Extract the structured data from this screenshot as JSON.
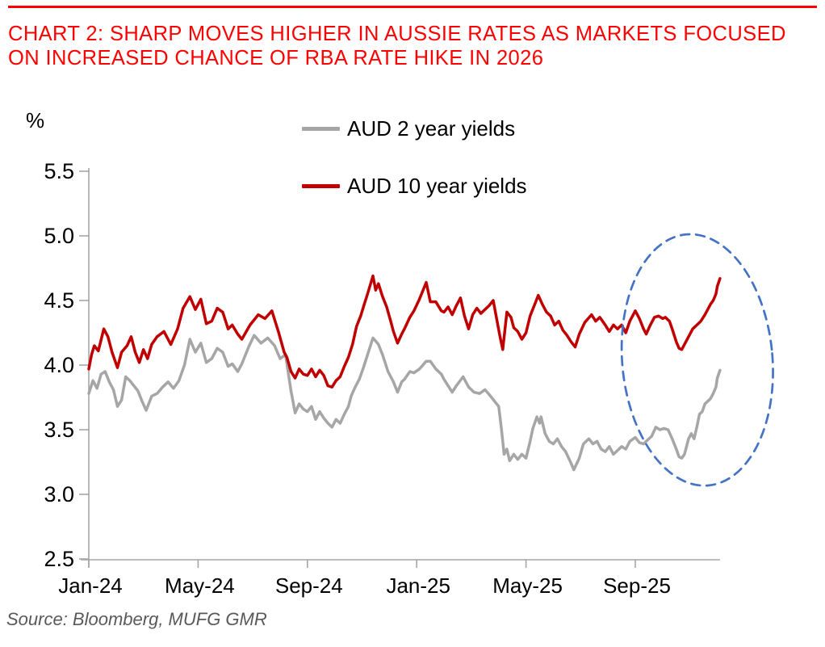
{
  "colors": {
    "title_red": "#FF0000",
    "rule_red": "#FF0000",
    "series_gray": "#A6A6A6",
    "series_red": "#C00000",
    "ellipse_blue": "#4472C4",
    "axis_gray": "#A6A6A6",
    "tick_text": "#000000",
    "source_gray": "#595959"
  },
  "header": {
    "title": "CHART 2: SHARP MOVES HIGHER IN AUSSIE RATES AS MARKETS FOCUSED ON INCREASED CHANCE OF RBA RATE HIKE IN 2026"
  },
  "footer": {
    "source": "Source: Bloomberg, MUFG GMR"
  },
  "chart_data": {
    "type": "line",
    "title": "",
    "ylabel": "%",
    "xlabel": "",
    "grid": false,
    "legend_position": "top-center",
    "ylim": [
      2.5,
      5.5
    ],
    "xlim_months": [
      0,
      23.1
    ],
    "x_unit": "months since Jan-2024",
    "y_ticks": [
      {
        "v": 5.5,
        "label": "5.5"
      },
      {
        "v": 5.0,
        "label": "5.0"
      },
      {
        "v": 4.5,
        "label": "4.5"
      },
      {
        "v": 4.0,
        "label": "4.0"
      },
      {
        "v": 3.5,
        "label": "3.5"
      },
      {
        "v": 3.0,
        "label": "3.0"
      },
      {
        "v": 2.5,
        "label": "2.5"
      }
    ],
    "x_ticks": [
      {
        "t": 0,
        "label": "Jan-24"
      },
      {
        "t": 4,
        "label": "May-24"
      },
      {
        "t": 8,
        "label": "Sep-24"
      },
      {
        "t": 12,
        "label": "Jan-25"
      },
      {
        "t": 16,
        "label": "May-25"
      },
      {
        "t": 20,
        "label": "Sep-25"
      }
    ],
    "series": [
      {
        "name": "AUD 2 year yields",
        "color": "#A6A6A6",
        "points": [
          [
            0,
            3.78
          ],
          [
            0.15,
            3.88
          ],
          [
            0.3,
            3.82
          ],
          [
            0.45,
            3.93
          ],
          [
            0.6,
            3.95
          ],
          [
            0.75,
            3.87
          ],
          [
            0.9,
            3.81
          ],
          [
            1.05,
            3.68
          ],
          [
            1.2,
            3.73
          ],
          [
            1.35,
            3.91
          ],
          [
            1.5,
            3.88
          ],
          [
            1.65,
            3.84
          ],
          [
            1.8,
            3.8
          ],
          [
            1.95,
            3.72
          ],
          [
            2.1,
            3.65
          ],
          [
            2.3,
            3.76
          ],
          [
            2.5,
            3.78
          ],
          [
            2.7,
            3.83
          ],
          [
            2.9,
            3.87
          ],
          [
            3.1,
            3.82
          ],
          [
            3.3,
            3.88
          ],
          [
            3.5,
            4.0
          ],
          [
            3.7,
            4.2
          ],
          [
            3.9,
            4.1
          ],
          [
            4.1,
            4.17
          ],
          [
            4.3,
            4.02
          ],
          [
            4.5,
            4.05
          ],
          [
            4.7,
            4.13
          ],
          [
            4.9,
            4.1
          ],
          [
            5.1,
            3.99
          ],
          [
            5.25,
            4.01
          ],
          [
            5.45,
            3.95
          ],
          [
            5.6,
            4.01
          ],
          [
            5.85,
            4.14
          ],
          [
            6.05,
            4.23
          ],
          [
            6.3,
            4.17
          ],
          [
            6.55,
            4.21
          ],
          [
            6.8,
            4.15
          ],
          [
            7.0,
            4.05
          ],
          [
            7.2,
            4.08
          ],
          [
            7.4,
            3.8
          ],
          [
            7.55,
            3.63
          ],
          [
            7.7,
            3.7
          ],
          [
            7.85,
            3.66
          ],
          [
            8.0,
            3.64
          ],
          [
            8.15,
            3.68
          ],
          [
            8.3,
            3.58
          ],
          [
            8.45,
            3.64
          ],
          [
            8.6,
            3.59
          ],
          [
            8.75,
            3.55
          ],
          [
            8.9,
            3.52
          ],
          [
            9.05,
            3.58
          ],
          [
            9.2,
            3.55
          ],
          [
            9.35,
            3.62
          ],
          [
            9.5,
            3.68
          ],
          [
            9.6,
            3.76
          ],
          [
            9.75,
            3.83
          ],
          [
            9.9,
            3.89
          ],
          [
            10.05,
            3.98
          ],
          [
            10.2,
            4.08
          ],
          [
            10.4,
            4.21
          ],
          [
            10.6,
            4.16
          ],
          [
            10.75,
            4.08
          ],
          [
            10.95,
            3.95
          ],
          [
            11.15,
            3.87
          ],
          [
            11.3,
            3.79
          ],
          [
            11.45,
            3.87
          ],
          [
            11.55,
            3.89
          ],
          [
            11.75,
            3.95
          ],
          [
            11.9,
            3.94
          ],
          [
            12.1,
            3.97
          ],
          [
            12.35,
            4.03
          ],
          [
            12.5,
            4.03
          ],
          [
            12.7,
            3.97
          ],
          [
            12.9,
            3.93
          ],
          [
            13.0,
            3.89
          ],
          [
            13.15,
            3.84
          ],
          [
            13.3,
            3.79
          ],
          [
            13.45,
            3.84
          ],
          [
            13.7,
            3.91
          ],
          [
            13.9,
            3.83
          ],
          [
            14.1,
            3.79
          ],
          [
            14.3,
            3.78
          ],
          [
            14.5,
            3.81
          ],
          [
            14.7,
            3.76
          ],
          [
            14.85,
            3.72
          ],
          [
            15.0,
            3.68
          ],
          [
            15.1,
            3.51
          ],
          [
            15.2,
            3.31
          ],
          [
            15.3,
            3.35
          ],
          [
            15.4,
            3.26
          ],
          [
            15.55,
            3.31
          ],
          [
            15.7,
            3.27
          ],
          [
            15.85,
            3.31
          ],
          [
            16.0,
            3.28
          ],
          [
            16.15,
            3.41
          ],
          [
            16.25,
            3.51
          ],
          [
            16.4,
            3.6
          ],
          [
            16.5,
            3.55
          ],
          [
            16.55,
            3.6
          ],
          [
            16.7,
            3.47
          ],
          [
            16.85,
            3.41
          ],
          [
            17.0,
            3.39
          ],
          [
            17.15,
            3.43
          ],
          [
            17.3,
            3.37
          ],
          [
            17.45,
            3.33
          ],
          [
            17.65,
            3.24
          ],
          [
            17.75,
            3.19
          ],
          [
            17.95,
            3.28
          ],
          [
            18.1,
            3.39
          ],
          [
            18.3,
            3.43
          ],
          [
            18.45,
            3.39
          ],
          [
            18.6,
            3.41
          ],
          [
            18.75,
            3.35
          ],
          [
            18.9,
            3.33
          ],
          [
            19.05,
            3.37
          ],
          [
            19.2,
            3.31
          ],
          [
            19.35,
            3.34
          ],
          [
            19.5,
            3.37
          ],
          [
            19.65,
            3.35
          ],
          [
            19.8,
            3.41
          ],
          [
            20.0,
            3.44
          ],
          [
            20.15,
            3.4
          ],
          [
            20.3,
            3.39
          ],
          [
            20.45,
            3.42
          ],
          [
            20.6,
            3.45
          ],
          [
            20.75,
            3.52
          ],
          [
            20.9,
            3.5
          ],
          [
            21.05,
            3.51
          ],
          [
            21.2,
            3.5
          ],
          [
            21.35,
            3.43
          ],
          [
            21.5,
            3.35
          ],
          [
            21.6,
            3.29
          ],
          [
            21.7,
            3.28
          ],
          [
            21.8,
            3.31
          ],
          [
            21.95,
            3.43
          ],
          [
            22.05,
            3.47
          ],
          [
            22.15,
            3.43
          ],
          [
            22.25,
            3.52
          ],
          [
            22.35,
            3.62
          ],
          [
            22.45,
            3.64
          ],
          [
            22.55,
            3.7
          ],
          [
            22.65,
            3.72
          ],
          [
            22.75,
            3.74
          ],
          [
            22.85,
            3.78
          ],
          [
            22.95,
            3.83
          ],
          [
            23.0,
            3.9
          ],
          [
            23.1,
            3.96
          ]
        ]
      },
      {
        "name": "AUD 10 year yields",
        "color": "#C00000",
        "points": [
          [
            0,
            3.97
          ],
          [
            0.1,
            4.08
          ],
          [
            0.2,
            4.15
          ],
          [
            0.35,
            4.11
          ],
          [
            0.55,
            4.28
          ],
          [
            0.7,
            4.22
          ],
          [
            0.85,
            4.1
          ],
          [
            1.05,
            3.98
          ],
          [
            1.2,
            4.1
          ],
          [
            1.4,
            4.15
          ],
          [
            1.55,
            4.22
          ],
          [
            1.7,
            4.1
          ],
          [
            1.85,
            4.02
          ],
          [
            2.0,
            4.12
          ],
          [
            2.15,
            4.05
          ],
          [
            2.3,
            4.16
          ],
          [
            2.5,
            4.22
          ],
          [
            2.75,
            4.26
          ],
          [
            3.0,
            4.16
          ],
          [
            3.25,
            4.28
          ],
          [
            3.45,
            4.44
          ],
          [
            3.7,
            4.53
          ],
          [
            3.9,
            4.43
          ],
          [
            4.1,
            4.51
          ],
          [
            4.3,
            4.32
          ],
          [
            4.5,
            4.34
          ],
          [
            4.7,
            4.44
          ],
          [
            4.9,
            4.41
          ],
          [
            5.1,
            4.28
          ],
          [
            5.25,
            4.31
          ],
          [
            5.45,
            4.24
          ],
          [
            5.6,
            4.2
          ],
          [
            5.9,
            4.31
          ],
          [
            6.2,
            4.39
          ],
          [
            6.45,
            4.36
          ],
          [
            6.7,
            4.42
          ],
          [
            6.95,
            4.25
          ],
          [
            7.15,
            4.1
          ],
          [
            7.25,
            4.06
          ],
          [
            7.4,
            3.95
          ],
          [
            7.55,
            3.9
          ],
          [
            7.7,
            3.97
          ],
          [
            7.85,
            3.93
          ],
          [
            8.0,
            3.92
          ],
          [
            8.15,
            3.97
          ],
          [
            8.3,
            3.91
          ],
          [
            8.45,
            3.96
          ],
          [
            8.6,
            3.92
          ],
          [
            8.75,
            3.84
          ],
          [
            8.9,
            3.83
          ],
          [
            9.05,
            3.88
          ],
          [
            9.2,
            3.91
          ],
          [
            9.35,
            3.99
          ],
          [
            9.5,
            4.06
          ],
          [
            9.65,
            4.16
          ],
          [
            9.8,
            4.3
          ],
          [
            9.95,
            4.38
          ],
          [
            10.05,
            4.45
          ],
          [
            10.2,
            4.55
          ],
          [
            10.4,
            4.69
          ],
          [
            10.5,
            4.58
          ],
          [
            10.6,
            4.63
          ],
          [
            10.75,
            4.53
          ],
          [
            10.9,
            4.45
          ],
          [
            11.05,
            4.34
          ],
          [
            11.15,
            4.26
          ],
          [
            11.3,
            4.17
          ],
          [
            11.45,
            4.24
          ],
          [
            11.55,
            4.28
          ],
          [
            11.75,
            4.37
          ],
          [
            11.9,
            4.42
          ],
          [
            12.1,
            4.51
          ],
          [
            12.35,
            4.64
          ],
          [
            12.5,
            4.49
          ],
          [
            12.7,
            4.49
          ],
          [
            12.9,
            4.42
          ],
          [
            13.0,
            4.41
          ],
          [
            13.15,
            4.45
          ],
          [
            13.3,
            4.39
          ],
          [
            13.45,
            4.46
          ],
          [
            13.6,
            4.52
          ],
          [
            13.75,
            4.38
          ],
          [
            13.9,
            4.28
          ],
          [
            14.05,
            4.39
          ],
          [
            14.2,
            4.44
          ],
          [
            14.35,
            4.4
          ],
          [
            14.5,
            4.43
          ],
          [
            14.65,
            4.46
          ],
          [
            14.8,
            4.5
          ],
          [
            14.95,
            4.33
          ],
          [
            15.05,
            4.22
          ],
          [
            15.15,
            4.12
          ],
          [
            15.3,
            4.41
          ],
          [
            15.45,
            4.37
          ],
          [
            15.55,
            4.29
          ],
          [
            15.7,
            4.26
          ],
          [
            15.85,
            4.2
          ],
          [
            16.0,
            4.25
          ],
          [
            16.15,
            4.38
          ],
          [
            16.3,
            4.46
          ],
          [
            16.45,
            4.54
          ],
          [
            16.6,
            4.47
          ],
          [
            16.75,
            4.41
          ],
          [
            16.9,
            4.38
          ],
          [
            17.05,
            4.31
          ],
          [
            17.2,
            4.34
          ],
          [
            17.35,
            4.27
          ],
          [
            17.5,
            4.23
          ],
          [
            17.65,
            4.18
          ],
          [
            17.8,
            4.14
          ],
          [
            17.95,
            4.24
          ],
          [
            18.15,
            4.33
          ],
          [
            18.4,
            4.39
          ],
          [
            18.55,
            4.34
          ],
          [
            18.7,
            4.37
          ],
          [
            18.9,
            4.31
          ],
          [
            19.05,
            4.26
          ],
          [
            19.2,
            4.31
          ],
          [
            19.35,
            4.28
          ],
          [
            19.5,
            4.31
          ],
          [
            19.65,
            4.25
          ],
          [
            19.8,
            4.34
          ],
          [
            20.0,
            4.42
          ],
          [
            20.15,
            4.36
          ],
          [
            20.3,
            4.28
          ],
          [
            20.4,
            4.24
          ],
          [
            20.55,
            4.31
          ],
          [
            20.7,
            4.37
          ],
          [
            20.85,
            4.38
          ],
          [
            21.0,
            4.36
          ],
          [
            21.1,
            4.37
          ],
          [
            21.25,
            4.34
          ],
          [
            21.35,
            4.28
          ],
          [
            21.5,
            4.18
          ],
          [
            21.6,
            4.13
          ],
          [
            21.7,
            4.12
          ],
          [
            21.8,
            4.16
          ],
          [
            21.95,
            4.22
          ],
          [
            22.1,
            4.28
          ],
          [
            22.25,
            4.31
          ],
          [
            22.4,
            4.34
          ],
          [
            22.55,
            4.39
          ],
          [
            22.65,
            4.43
          ],
          [
            22.75,
            4.47
          ],
          [
            22.85,
            4.5
          ],
          [
            22.95,
            4.55
          ],
          [
            23.0,
            4.61
          ],
          [
            23.1,
            4.67
          ]
        ]
      }
    ],
    "annotation": {
      "type": "ellipse",
      "purpose": "highlights sharp late-2025 rise in yields",
      "color": "#4472C4",
      "center_t": 22.27,
      "center_value": 4.04,
      "rx_months": 2.75,
      "ry_value": 0.975,
      "rotation_deg": -5
    }
  }
}
